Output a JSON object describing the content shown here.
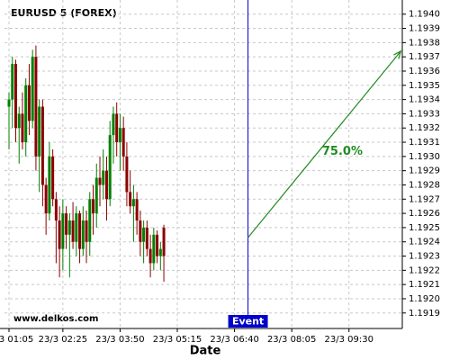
{
  "chart_data": {
    "type": "candlestick",
    "title": "EURUSD 5 (FOREX)",
    "x_label": "Date",
    "watermark": "www.delkos.com",
    "up_color": "#008000",
    "down_color": "#8b0000",
    "grid": true,
    "x": [
      0,
      1,
      2,
      3,
      4,
      5,
      6,
      7,
      8,
      9,
      10,
      11,
      12,
      13,
      14,
      15,
      16,
      17,
      18,
      19,
      20,
      21,
      22,
      23,
      24,
      25,
      26,
      27,
      28,
      29,
      30,
      31,
      32,
      33,
      34,
      35,
      36,
      37,
      38,
      39,
      40,
      41,
      42,
      43,
      44,
      45,
      46
    ],
    "open": [
      1.19335,
      1.1934,
      1.19365,
      1.1932,
      1.1933,
      1.1931,
      1.1935,
      1.19325,
      1.1937,
      1.193,
      1.19335,
      1.1928,
      1.1926,
      1.193,
      1.1927,
      1.19255,
      1.19235,
      1.1926,
      1.19245,
      1.19255,
      1.1924,
      1.1926,
      1.19235,
      1.19255,
      1.1924,
      1.1927,
      1.1926,
      1.19285,
      1.1928,
      1.1929,
      1.1927,
      1.19315,
      1.1933,
      1.1931,
      1.1932,
      1.193,
      1.19275,
      1.19265,
      1.1927,
      1.19255,
      1.1924,
      1.1925,
      1.19235,
      1.19225,
      1.19245,
      1.1923,
      1.1925
    ],
    "high": [
      1.19345,
      1.1937,
      1.19368,
      1.19335,
      1.19345,
      1.19355,
      1.19365,
      1.19375,
      1.19378,
      1.1934,
      1.1934,
      1.19285,
      1.1931,
      1.19305,
      1.19275,
      1.19265,
      1.1927,
      1.19265,
      1.1926,
      1.19268,
      1.19265,
      1.19262,
      1.19265,
      1.19262,
      1.19275,
      1.1928,
      1.19295,
      1.193,
      1.19305,
      1.193,
      1.19325,
      1.19335,
      1.19338,
      1.1933,
      1.19328,
      1.1931,
      1.1929,
      1.1928,
      1.19275,
      1.19262,
      1.19255,
      1.19255,
      1.19245,
      1.1925,
      1.19248,
      1.1924,
      1.19252
    ],
    "low": [
      1.19305,
      1.1932,
      1.1931,
      1.19295,
      1.19305,
      1.193,
      1.19315,
      1.1932,
      1.1929,
      1.19275,
      1.19265,
      1.19245,
      1.19255,
      1.19265,
      1.19225,
      1.19215,
      1.1922,
      1.19235,
      1.19215,
      1.19235,
      1.1923,
      1.19225,
      1.1923,
      1.19225,
      1.1923,
      1.19245,
      1.1925,
      1.19265,
      1.1927,
      1.19255,
      1.19265,
      1.19295,
      1.193,
      1.1929,
      1.1929,
      1.19265,
      1.1926,
      1.1924,
      1.19245,
      1.1923,
      1.19225,
      1.1923,
      1.19215,
      1.1922,
      1.19225,
      1.1922,
      1.19212
    ],
    "close": [
      1.1934,
      1.19365,
      1.1932,
      1.1933,
      1.1931,
      1.1935,
      1.19325,
      1.1937,
      1.193,
      1.19335,
      1.1928,
      1.1926,
      1.193,
      1.1927,
      1.19255,
      1.19235,
      1.1926,
      1.19245,
      1.19255,
      1.1924,
      1.1926,
      1.19235,
      1.19255,
      1.1924,
      1.1927,
      1.1926,
      1.19285,
      1.1928,
      1.1929,
      1.1927,
      1.19315,
      1.1933,
      1.1931,
      1.1932,
      1.193,
      1.19275,
      1.19265,
      1.1927,
      1.19255,
      1.1924,
      1.1925,
      1.19235,
      1.19225,
      1.19245,
      1.1923,
      1.19235,
      1.1923
    ],
    "xlim": [
      -1.34,
      116.84
    ],
    "xticks": [
      {
        "value": 0,
        "label": "23/3 01:05"
      },
      {
        "value": 16,
        "label": "23/3 02:25"
      },
      {
        "value": 33,
        "label": "23/3 03:50"
      },
      {
        "value": 50,
        "label": "23/3 05:15"
      },
      {
        "value": 67,
        "label": "23/3 06:40"
      },
      {
        "value": 84,
        "label": "23/3 08:05"
      },
      {
        "value": 101,
        "label": "23/3 09:30"
      }
    ],
    "ylim": [
      1.19181,
      1.19403
    ],
    "yticks": [
      1.1919,
      {
        "value": 1.192,
        "label": "1.1920"
      },
      1.1921,
      1.1922,
      1.1923,
      1.1924,
      1.1925,
      1.1926,
      1.1927,
      1.1928,
      1.1929,
      {
        "value": 1.193,
        "label": "1.1930"
      },
      1.1931,
      1.1932,
      1.1933,
      1.1934,
      1.1935,
      1.1936,
      1.1937,
      1.1938,
      1.1939,
      {
        "value": 1.194,
        "label": "1.1940"
      }
    ],
    "event": {
      "x": 71,
      "label": "Event",
      "color": "#0000cc"
    },
    "arrow": {
      "x": [
        71,
        116.4
      ],
      "y": [
        1.19243,
        1.19374
      ],
      "label": "75.0%",
      "color": "#228b22"
    }
  }
}
